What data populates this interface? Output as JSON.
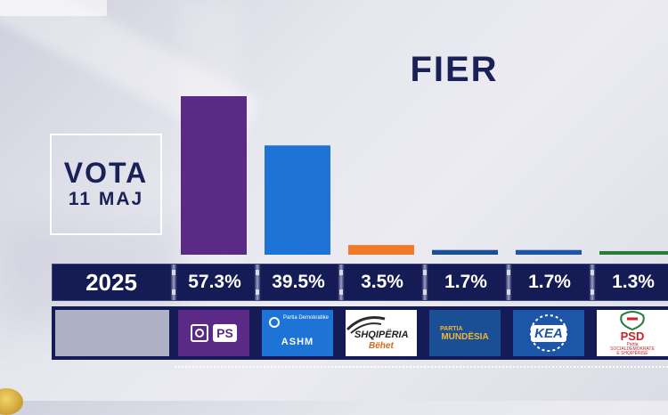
{
  "header": {
    "title": "FIER"
  },
  "vote_box": {
    "line1": "VOTA",
    "line2": "11 MAJ"
  },
  "results": {
    "year": "2025",
    "percent_labels": [
      "57.3%",
      "39.5%",
      "3.5%",
      "1.7%",
      "1.7%",
      "1.3%"
    ]
  },
  "logos": {
    "ps": "PS",
    "ashm_small": "Partia Demokratike",
    "ashm": "ASHM",
    "shqiperia_1": "SHQIPËRIA",
    "shqiperia_2": "Bëhet",
    "mundesia_1": "PARTIA",
    "mundesia_2": "MUNDËSIA",
    "kea": "KEA",
    "psd": "PSD",
    "psd_small": "Partia SOCIALDEMOKRATE E SHQIPËRISË"
  },
  "colors": {
    "ps": "#5b2a86",
    "ashm": "#1e74d6",
    "shqiperia": "#f07a25",
    "mundesia": "#1a4f96",
    "kea": "#1d56a8",
    "psd": "#2a7a3c",
    "strip": "#141b55",
    "title": "#1a2159"
  },
  "chart_data": {
    "type": "bar",
    "title": "FIER",
    "categories": [
      "PS",
      "ASHM",
      "SHQIPËRIA Bëhet",
      "PARTIA MUNDËSIA",
      "KEA",
      "PSD"
    ],
    "values": [
      57.3,
      39.5,
      3.5,
      1.7,
      1.7,
      1.3
    ],
    "unit": "%",
    "ylim": [
      0,
      60
    ],
    "grid": false,
    "legend": "none"
  }
}
